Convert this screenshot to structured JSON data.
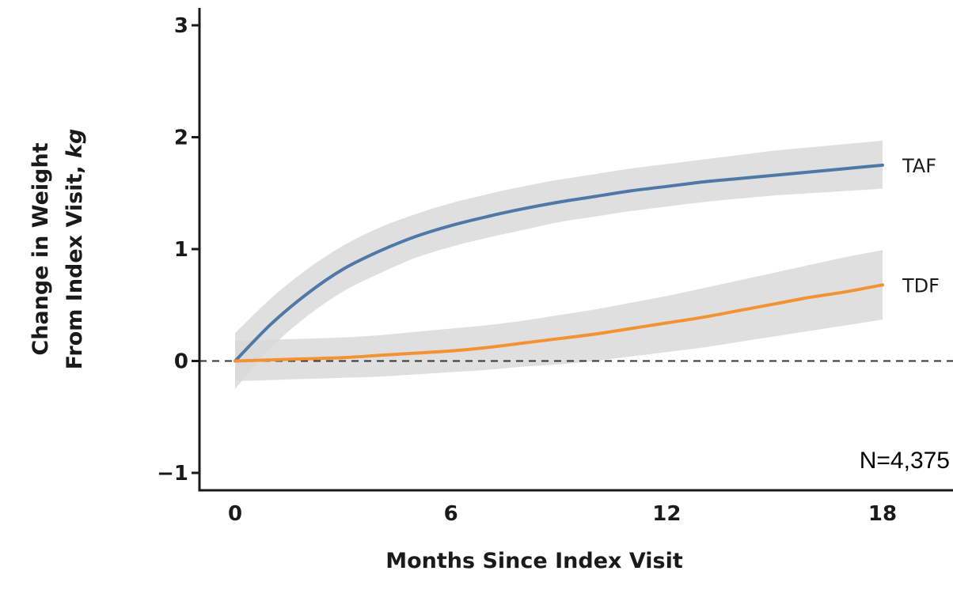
{
  "chart_data": {
    "type": "line",
    "xlabel": "Months Since Index Visit",
    "ylabel_line1": "Change in Weight",
    "ylabel_line2_prefix": "From Index Visit, ",
    "ylabel_line2_unit": "kg",
    "xlim": [
      0,
      18
    ],
    "ylim": [
      -1,
      3
    ],
    "x_ticks": [
      {
        "value": 0,
        "label": "0"
      },
      {
        "value": 6,
        "label": "6"
      },
      {
        "value": 12,
        "label": "12"
      },
      {
        "value": 18,
        "label": "18"
      }
    ],
    "y_ticks": [
      {
        "value": -1,
        "label": "−1"
      },
      {
        "value": 0,
        "label": "0"
      },
      {
        "value": 1,
        "label": "1"
      },
      {
        "value": 2,
        "label": "2"
      },
      {
        "value": 3,
        "label": "3"
      }
    ],
    "reference_line": {
      "y": 0,
      "style": "dashed"
    },
    "annotation": "N=4,375",
    "grid": false,
    "series": [
      {
        "name": "TAF",
        "color": "#4e79a7",
        "band_color": "#d9d9d9",
        "x": [
          0,
          1,
          2,
          3,
          4,
          5,
          6,
          7,
          8,
          9,
          10,
          11,
          12,
          13,
          14,
          15,
          16,
          17,
          18
        ],
        "y": [
          0.0,
          0.33,
          0.6,
          0.82,
          0.98,
          1.11,
          1.21,
          1.29,
          1.36,
          1.42,
          1.47,
          1.52,
          1.56,
          1.6,
          1.63,
          1.66,
          1.69,
          1.72,
          1.75
        ],
        "lower": [
          -0.25,
          0.12,
          0.4,
          0.62,
          0.78,
          0.92,
          1.02,
          1.1,
          1.17,
          1.24,
          1.29,
          1.34,
          1.38,
          1.42,
          1.45,
          1.48,
          1.5,
          1.52,
          1.54
        ],
        "upper": [
          0.25,
          0.56,
          0.82,
          1.03,
          1.19,
          1.31,
          1.41,
          1.49,
          1.56,
          1.62,
          1.67,
          1.72,
          1.76,
          1.8,
          1.84,
          1.88,
          1.91,
          1.94,
          1.97
        ]
      },
      {
        "name": "TDF",
        "color": "#f39231",
        "band_color": "#d9d9d9",
        "x": [
          0,
          1,
          2,
          3,
          4,
          5,
          6,
          7,
          8,
          9,
          10,
          11,
          12,
          13,
          14,
          15,
          16,
          17,
          18
        ],
        "y": [
          0.0,
          0.01,
          0.02,
          0.03,
          0.05,
          0.07,
          0.09,
          0.12,
          0.16,
          0.2,
          0.24,
          0.29,
          0.34,
          0.39,
          0.45,
          0.51,
          0.57,
          0.62,
          0.68
        ],
        "lower": [
          -0.18,
          -0.17,
          -0.16,
          -0.15,
          -0.14,
          -0.12,
          -0.1,
          -0.08,
          -0.05,
          -0.03,
          0.0,
          0.04,
          0.08,
          0.12,
          0.17,
          0.22,
          0.27,
          0.32,
          0.37
        ],
        "upper": [
          0.18,
          0.19,
          0.2,
          0.21,
          0.23,
          0.26,
          0.29,
          0.32,
          0.36,
          0.41,
          0.46,
          0.52,
          0.58,
          0.65,
          0.72,
          0.79,
          0.86,
          0.93,
          0.99
        ]
      }
    ]
  }
}
